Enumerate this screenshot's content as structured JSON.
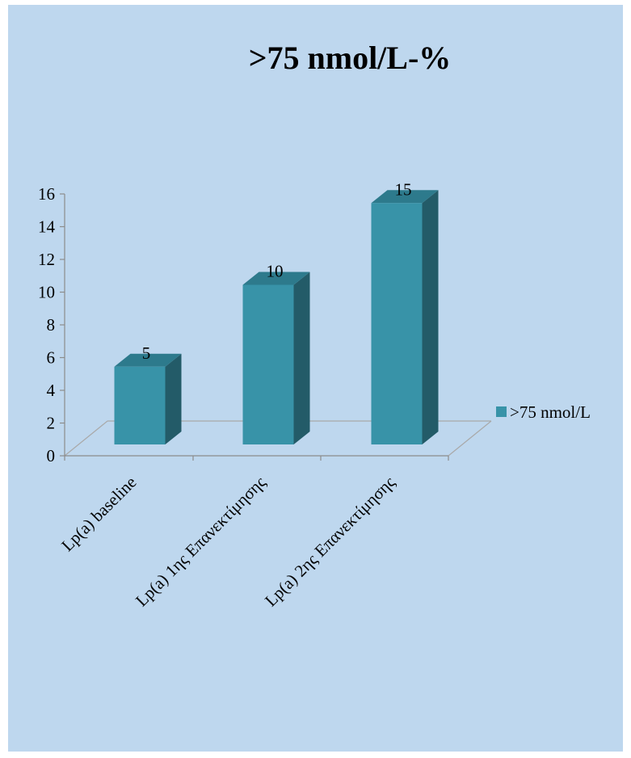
{
  "chart_data": {
    "type": "bar",
    "title": ">75 nmol/L-%",
    "categories": [
      "Lp(a) baseline",
      "Lp(a) 1ης Επανεκτίμησης",
      "Lp(a) 2ης Επανεκτίμησης"
    ],
    "series": [
      {
        "name": ">75 nmol/L",
        "values": [
          5,
          10,
          15
        ],
        "color": "#3893a8"
      }
    ],
    "data_labels": [
      "5",
      "10",
      "15"
    ],
    "yticks": [
      "0",
      "2",
      "4",
      "6",
      "8",
      "10",
      "12",
      "14",
      "16"
    ],
    "ylim": [
      0,
      16
    ],
    "xlabel": "",
    "ylabel": "",
    "grid": false,
    "legend_position": "right",
    "style": "3d-column"
  },
  "colors": {
    "background": "#bed7ee",
    "bar_front": "#3893a8",
    "bar_top": "#2d7a8c",
    "bar_side": "#235b68"
  }
}
